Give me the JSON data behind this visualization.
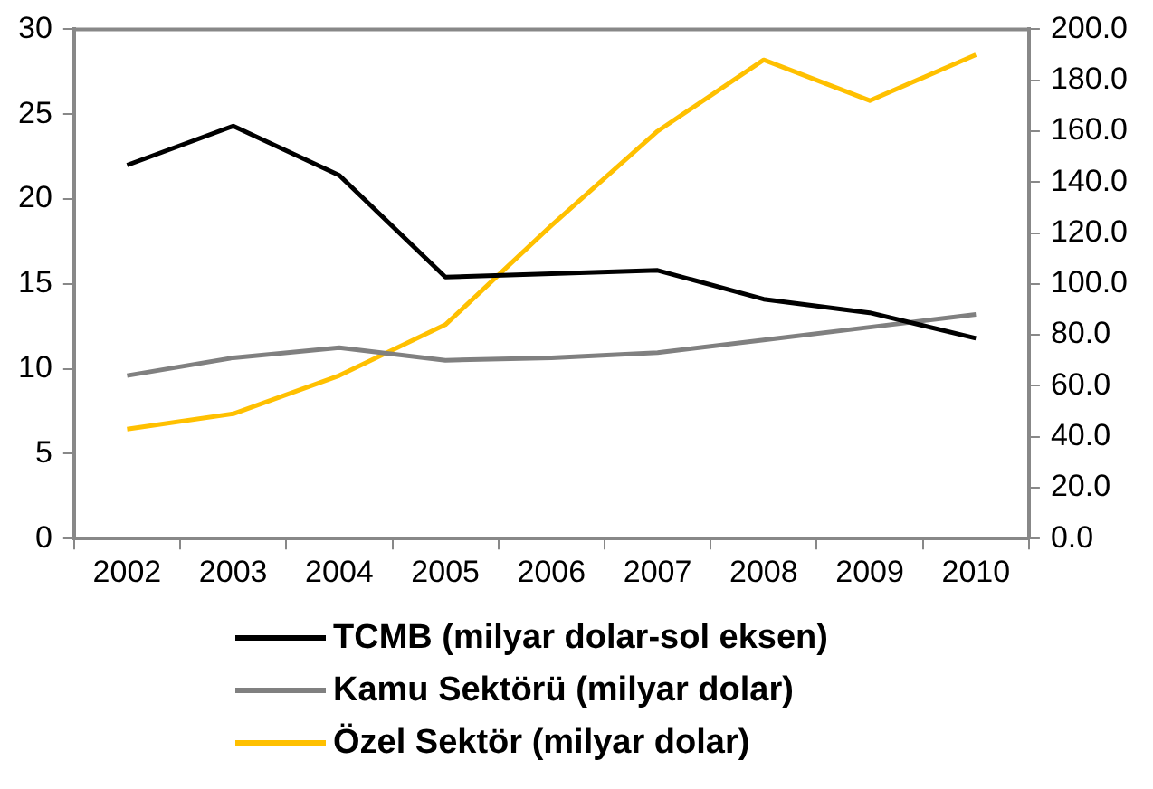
{
  "chart_data": {
    "type": "line",
    "categories": [
      "2002",
      "2003",
      "2004",
      "2005",
      "2006",
      "2007",
      "2008",
      "2009",
      "2010"
    ],
    "series": [
      {
        "name": "TCMB (milyar dolar-sol eksen)",
        "color": "#000000",
        "values": [
          22.0,
          24.3,
          21.4,
          15.4,
          15.6,
          15.8,
          14.1,
          13.3,
          11.8
        ]
      },
      {
        "name": "Kamu Sektörü (milyar dolar)",
        "color": "#808080",
        "axis": "y2",
        "values": [
          64,
          71,
          75,
          70,
          71,
          73,
          78,
          83,
          88
        ]
      },
      {
        "name": "Özel Sektör (milyar dolar)",
        "color": "#ffc000",
        "axis": "y2",
        "values": [
          43,
          49,
          64,
          84,
          123,
          160,
          188,
          172,
          190
        ]
      }
    ],
    "ylim": [
      0,
      30
    ],
    "yticks": [
      0,
      5,
      10,
      15,
      20,
      25,
      30
    ],
    "y2lim": [
      0,
      200
    ],
    "y2ticks": [
      {
        "value": 0,
        "label": "0.0"
      },
      {
        "value": 20,
        "label": "20.0"
      },
      {
        "value": 40,
        "label": "40.0"
      },
      {
        "value": 60,
        "label": "60.0"
      },
      {
        "value": 80,
        "label": "80.0"
      },
      {
        "value": 100,
        "label": "100.0"
      },
      {
        "value": 120,
        "label": "120.0"
      },
      {
        "value": 140,
        "label": "140.0"
      },
      {
        "value": 160,
        "label": "160.0"
      },
      {
        "value": 180,
        "label": "180.0"
      },
      {
        "value": 200,
        "label": "200.0"
      }
    ],
    "grid": false,
    "legend": "bottom",
    "marker": "none",
    "line_style": "solid"
  }
}
